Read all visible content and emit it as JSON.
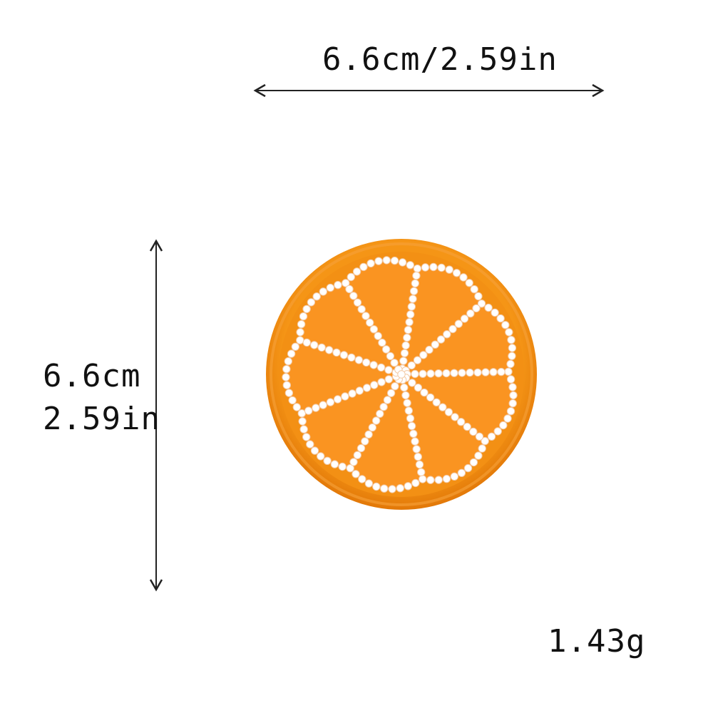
{
  "dimensions": {
    "width_text": "6.6cm/2.59in",
    "height_cm_text": "6.6cm",
    "height_in_text": "2.59in"
  },
  "weight_text": "1.43g",
  "product": {
    "description": "orange slice patch",
    "colors": {
      "rim": "#f08a12",
      "rim_dark": "#d9700a",
      "flesh": "#f99220",
      "sequin": "#ffffff"
    }
  }
}
